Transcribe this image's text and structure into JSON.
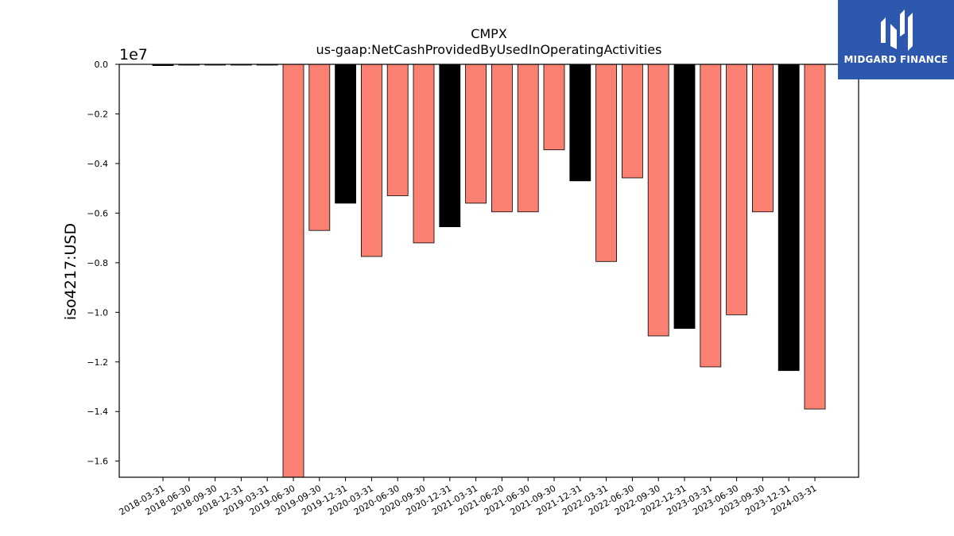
{
  "logo": {
    "text": "MIDGARD FINANCE",
    "mark": "midgard-logo-icon",
    "background": "#2d58ad"
  },
  "chart_data": {
    "type": "bar",
    "title": "CMPX",
    "subtitle": "us-gaap:NetCashProvidedByUsedInOperatingActivities",
    "xlabel": "",
    "ylabel": "iso4217:USD",
    "offset_text": "1e7",
    "ylim": [
      -16650000,
      0
    ],
    "yticks": [
      0,
      -2000000,
      -4000000,
      -6000000,
      -8000000,
      -10000000,
      -12000000,
      -14000000,
      -16000000
    ],
    "ytick_labels": [
      "0.0",
      "−0.2",
      "−0.4",
      "−0.6",
      "−0.8",
      "−1.0",
      "−1.2",
      "−1.4",
      "−1.6"
    ],
    "grid": false,
    "colors": {
      "quarter": "#fa8072",
      "annual": "#000000",
      "edge": "#000000"
    },
    "categories": [
      "2018-03-31",
      "2018-06-30",
      "2018-09-30",
      "2018-12-31",
      "2019-03-31",
      "2019-06-30",
      "2019-09-30",
      "2019-12-31",
      "2020-03-31",
      "2020-06-30",
      "2020-09-30",
      "2020-12-31",
      "2021-03-31",
      "2021-06-20",
      "2021-06-30",
      "2021-09-30",
      "2021-12-31",
      "2022-03-31",
      "2022-06-30",
      "2022-09-30",
      "2022-12-31",
      "2023-03-31",
      "2023-06-30",
      "2023-09-30",
      "2023-12-31",
      "2024-03-31"
    ],
    "series": [
      {
        "values": [
          -50000,
          -10000,
          -10000,
          -10000,
          -10000,
          -16700000,
          -6700000,
          -5600000,
          -7750000,
          -5300000,
          -7200000,
          -6550000,
          -5600000,
          -5950000,
          -5950000,
          -3450000,
          -4700000,
          -7950000,
          -4580000,
          -10950000,
          -10650000,
          -12200000,
          -10100000,
          -5950000,
          -12350000,
          -13900000
        ],
        "color_keys": [
          "annual",
          "quarter",
          "quarter",
          "quarter",
          "quarter",
          "quarter",
          "quarter",
          "annual",
          "quarter",
          "quarter",
          "quarter",
          "annual",
          "quarter",
          "quarter",
          "quarter",
          "quarter",
          "annual",
          "quarter",
          "quarter",
          "quarter",
          "annual",
          "quarter",
          "quarter",
          "quarter",
          "annual",
          "quarter"
        ]
      }
    ]
  }
}
